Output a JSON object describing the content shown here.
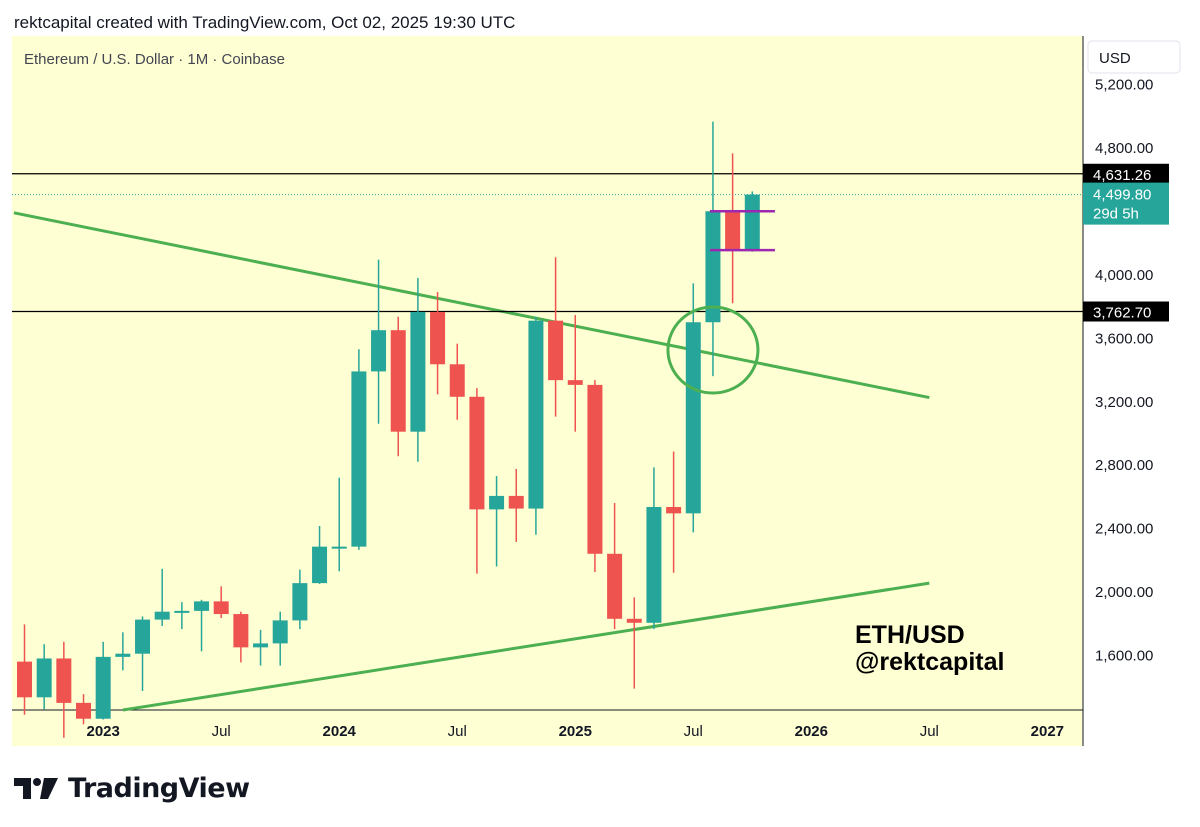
{
  "header": {
    "credit": "rektcapital created with TradingView.com, Oct 02, 2025 19:30 UTC"
  },
  "symbol_line": "Ethereum / U.S. Dollar · 1M · Coinbase",
  "currency_label": "USD",
  "watermark": {
    "line1": "ETH/USD",
    "line2": "@rektcapital"
  },
  "footer": {
    "brand": "TradingView"
  },
  "colors": {
    "background": "#FFFFD4",
    "up": "#26A69A",
    "down": "#EF5350",
    "trendline": "#4CAF50",
    "range_box": "#9C27B0",
    "level_line": "#000000",
    "last_price_bg": "#26A69A"
  },
  "chart_data": {
    "type": "candlestick",
    "title": "Ethereum / U.S. Dollar · 1M · Coinbase",
    "ylim": [
      1250,
      5500
    ],
    "y_ticks": [
      1600,
      2000,
      2400,
      2800,
      3200,
      3600,
      4000,
      4400,
      4800,
      5200
    ],
    "y_tick_labels": [
      "1,600.00",
      "2,000.00",
      "2,400.00",
      "2,800.00",
      "3,200.00",
      "3,600.00",
      "4,000.00",
      "",
      "4,800.00",
      "5,200.00"
    ],
    "x_ticks": [
      {
        "date": "2023-01",
        "label": "2023",
        "bold": true
      },
      {
        "date": "2023-07",
        "label": "Jul",
        "bold": false
      },
      {
        "date": "2024-01",
        "label": "2024",
        "bold": true
      },
      {
        "date": "2024-07",
        "label": "Jul",
        "bold": false
      },
      {
        "date": "2025-01",
        "label": "2025",
        "bold": true
      },
      {
        "date": "2025-07",
        "label": "Jul",
        "bold": false
      },
      {
        "date": "2026-01",
        "label": "2026",
        "bold": true
      },
      {
        "date": "2026-07",
        "label": "Jul",
        "bold": false
      },
      {
        "date": "2027-01",
        "label": "2027",
        "bold": true
      }
    ],
    "candles": [
      {
        "date": "2022-09",
        "o": 1555,
        "h": 1790,
        "l": 1220,
        "c": 1330
      },
      {
        "date": "2022-10",
        "o": 1330,
        "h": 1665,
        "l": 1255,
        "c": 1575
      },
      {
        "date": "2022-11",
        "o": 1575,
        "h": 1680,
        "l": 1075,
        "c": 1295
      },
      {
        "date": "2022-12",
        "o": 1295,
        "h": 1350,
        "l": 1160,
        "c": 1195
      },
      {
        "date": "2023-01",
        "o": 1195,
        "h": 1680,
        "l": 1190,
        "c": 1585
      },
      {
        "date": "2023-02",
        "o": 1585,
        "h": 1740,
        "l": 1500,
        "c": 1605
      },
      {
        "date": "2023-03",
        "o": 1605,
        "h": 1840,
        "l": 1370,
        "c": 1820
      },
      {
        "date": "2023-04",
        "o": 1820,
        "h": 2140,
        "l": 1780,
        "c": 1870
      },
      {
        "date": "2023-05",
        "o": 1870,
        "h": 1930,
        "l": 1760,
        "c": 1875
      },
      {
        "date": "2023-06",
        "o": 1875,
        "h": 1945,
        "l": 1620,
        "c": 1935
      },
      {
        "date": "2023-07",
        "o": 1935,
        "h": 2030,
        "l": 1830,
        "c": 1855
      },
      {
        "date": "2023-08",
        "o": 1855,
        "h": 1870,
        "l": 1550,
        "c": 1645
      },
      {
        "date": "2023-09",
        "o": 1645,
        "h": 1755,
        "l": 1530,
        "c": 1670
      },
      {
        "date": "2023-10",
        "o": 1670,
        "h": 1870,
        "l": 1530,
        "c": 1815
      },
      {
        "date": "2023-11",
        "o": 1815,
        "h": 2135,
        "l": 1760,
        "c": 2050
      },
      {
        "date": "2023-12",
        "o": 2050,
        "h": 2410,
        "l": 2045,
        "c": 2280
      },
      {
        "date": "2024-01",
        "o": 2280,
        "h": 2715,
        "l": 2125,
        "c": 2280
      },
      {
        "date": "2024-02",
        "o": 2280,
        "h": 3525,
        "l": 2260,
        "c": 3385
      },
      {
        "date": "2024-03",
        "o": 3385,
        "h": 4090,
        "l": 3055,
        "c": 3645
      },
      {
        "date": "2024-04",
        "o": 3645,
        "h": 3730,
        "l": 2850,
        "c": 3005
      },
      {
        "date": "2024-05",
        "o": 3005,
        "h": 3975,
        "l": 2815,
        "c": 3760
      },
      {
        "date": "2024-06",
        "o": 3760,
        "h": 3885,
        "l": 3240,
        "c": 3430
      },
      {
        "date": "2024-07",
        "o": 3430,
        "h": 3560,
        "l": 3080,
        "c": 3225
      },
      {
        "date": "2024-08",
        "o": 3225,
        "h": 3280,
        "l": 2110,
        "c": 2515
      },
      {
        "date": "2024-09",
        "o": 2515,
        "h": 2725,
        "l": 2155,
        "c": 2600
      },
      {
        "date": "2024-10",
        "o": 2600,
        "h": 2770,
        "l": 2310,
        "c": 2520
      },
      {
        "date": "2024-11",
        "o": 2520,
        "h": 3730,
        "l": 2355,
        "c": 3705
      },
      {
        "date": "2024-12",
        "o": 3705,
        "h": 4105,
        "l": 3100,
        "c": 3330
      },
      {
        "date": "2025-01",
        "o": 3330,
        "h": 3740,
        "l": 3005,
        "c": 3300
      },
      {
        "date": "2025-02",
        "o": 3300,
        "h": 3330,
        "l": 2120,
        "c": 2235
      },
      {
        "date": "2025-03",
        "o": 2235,
        "h": 2555,
        "l": 1760,
        "c": 1825
      },
      {
        "date": "2025-04",
        "o": 1825,
        "h": 1960,
        "l": 1385,
        "c": 1800
      },
      {
        "date": "2025-05",
        "o": 1800,
        "h": 2780,
        "l": 1760,
        "c": 2530
      },
      {
        "date": "2025-06",
        "o": 2530,
        "h": 2880,
        "l": 2115,
        "c": 2490
      },
      {
        "date": "2025-07",
        "o": 2490,
        "h": 3940,
        "l": 2370,
        "c": 3695
      },
      {
        "date": "2025-08",
        "o": 3695,
        "h": 4960,
        "l": 3355,
        "c": 4395
      },
      {
        "date": "2025-09",
        "o": 4395,
        "h": 4760,
        "l": 3815,
        "c": 4150
      },
      {
        "date": "2025-10",
        "o": 4150,
        "h": 4520,
        "l": 4140,
        "c": 4500
      }
    ],
    "horizontal_levels": [
      {
        "price": 4631.26,
        "label": "4,631.26",
        "style": "solid"
      },
      {
        "price": 3762.7,
        "label": "3,762.70",
        "style": "solid"
      }
    ],
    "last_price": {
      "price": 4499.8,
      "label": "4,499.80",
      "countdown": "29d 5h"
    },
    "trendlines": [
      {
        "name": "descending",
        "from": {
          "date": "2022-08-15",
          "price": 4385
        },
        "to": {
          "date": "2026-07-01",
          "price": 3220
        }
      },
      {
        "name": "ascending",
        "from": {
          "date": "2023-02-01",
          "price": 1250
        },
        "to": {
          "date": "2026-07-01",
          "price": 2050
        }
      }
    ],
    "range_lines": [
      {
        "from_date": "2025-08",
        "to_date": "2025-11",
        "price": 4395
      },
      {
        "from_date": "2025-08",
        "to_date": "2025-11",
        "price": 4150
      }
    ],
    "circle_annotation": {
      "date": "2025-08",
      "price": 3520
    }
  }
}
